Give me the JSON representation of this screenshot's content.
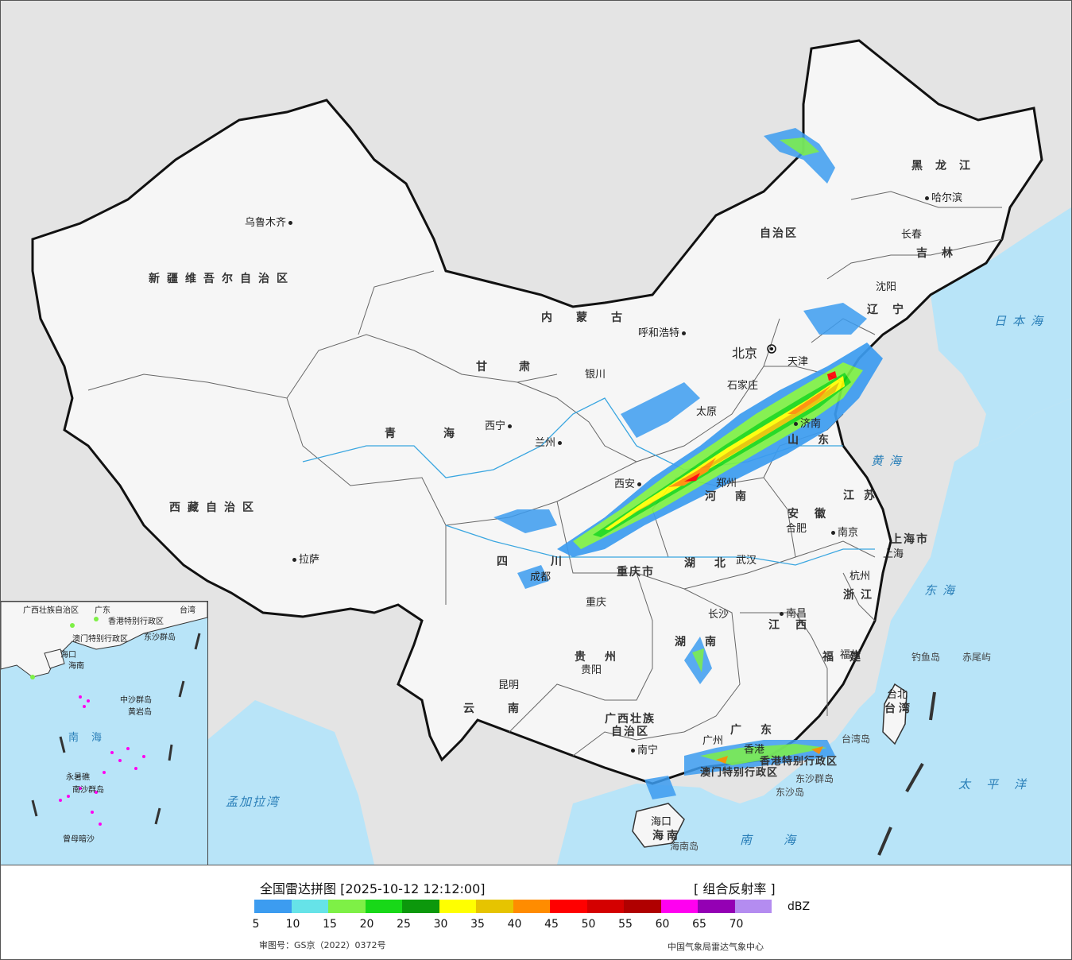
{
  "map": {
    "provinces": [
      {
        "name": "新疆维吾尔自治区"
      },
      {
        "name": "西藏自治区"
      },
      {
        "name": "青海"
      },
      {
        "name": "甘肃"
      },
      {
        "name": "四川"
      },
      {
        "name": "云南"
      },
      {
        "name": "贵州"
      },
      {
        "name": "广西壮族"
      },
      {
        "name": "自治区"
      },
      {
        "name": "广东"
      },
      {
        "name": "湖南"
      },
      {
        "name": "湖北"
      },
      {
        "name": "河南"
      },
      {
        "name": "山东"
      },
      {
        "name": "江苏"
      },
      {
        "name": "浙江"
      },
      {
        "name": "安徽"
      },
      {
        "name": "江西"
      },
      {
        "name": "福建"
      },
      {
        "name": "黑龙江"
      },
      {
        "name": "吉林"
      },
      {
        "name": "辽宁"
      },
      {
        "name": "内蒙古"
      },
      {
        "name": "自治区"
      },
      {
        "name": "上海市"
      },
      {
        "name": "重庆市"
      },
      {
        "name": "台湾"
      },
      {
        "name": "海南"
      },
      {
        "name": "香港特别行政区"
      },
      {
        "name": "澳门特别行政区"
      }
    ],
    "cities": [
      "乌鲁木齐",
      "拉萨",
      "西宁",
      "兰州",
      "银川",
      "呼和浩特",
      "北京",
      "天津",
      "石家庄",
      "太原",
      "济南",
      "郑州",
      "西安",
      "成都",
      "重庆",
      "贵阳",
      "昆明",
      "南宁",
      "广州",
      "香港",
      "长沙",
      "武汉",
      "南昌",
      "合肥",
      "南京",
      "杭州",
      "上海",
      "福州",
      "台北",
      "沈阳",
      "长春",
      "哈尔滨",
      "海口"
    ],
    "seas": [
      "日本海",
      "黄海",
      "东海",
      "太平洋",
      "南海",
      "孟加拉湾"
    ],
    "islands": [
      "钓鱼岛",
      "赤尾屿",
      "台湾岛",
      "东沙群岛",
      "东沙岛",
      "海南岛"
    ],
    "inset_labels": [
      "广西壮族自治区",
      "广东",
      "台湾",
      "香港特别行政区",
      "澳门特别行政区",
      "东沙群岛",
      "海口",
      "海南",
      "中沙群岛",
      "黄岩岛",
      "南海",
      "南沙群岛",
      "永暑礁",
      "曾母暗沙"
    ]
  },
  "legend": {
    "title": "全国雷达拼图 [2025-10-12 12:12:00]",
    "product": "[ 组合反射率 ]",
    "unit": "dBZ",
    "ticks": [
      "5",
      "10",
      "15",
      "20",
      "25",
      "30",
      "35",
      "40",
      "45",
      "50",
      "55",
      "60",
      "65",
      "70"
    ],
    "colors": [
      "#3c9cf0",
      "#66e3e8",
      "#7ef046",
      "#18d818",
      "#0c980c",
      "#ffff00",
      "#e6c400",
      "#ff8c00",
      "#ff0000",
      "#d40000",
      "#b00000",
      "#ff00f0",
      "#9400b4",
      "#b48cf0"
    ],
    "approval": "审图号：GS京（2022）0372号",
    "source": "中国气象局雷达气象中心"
  }
}
